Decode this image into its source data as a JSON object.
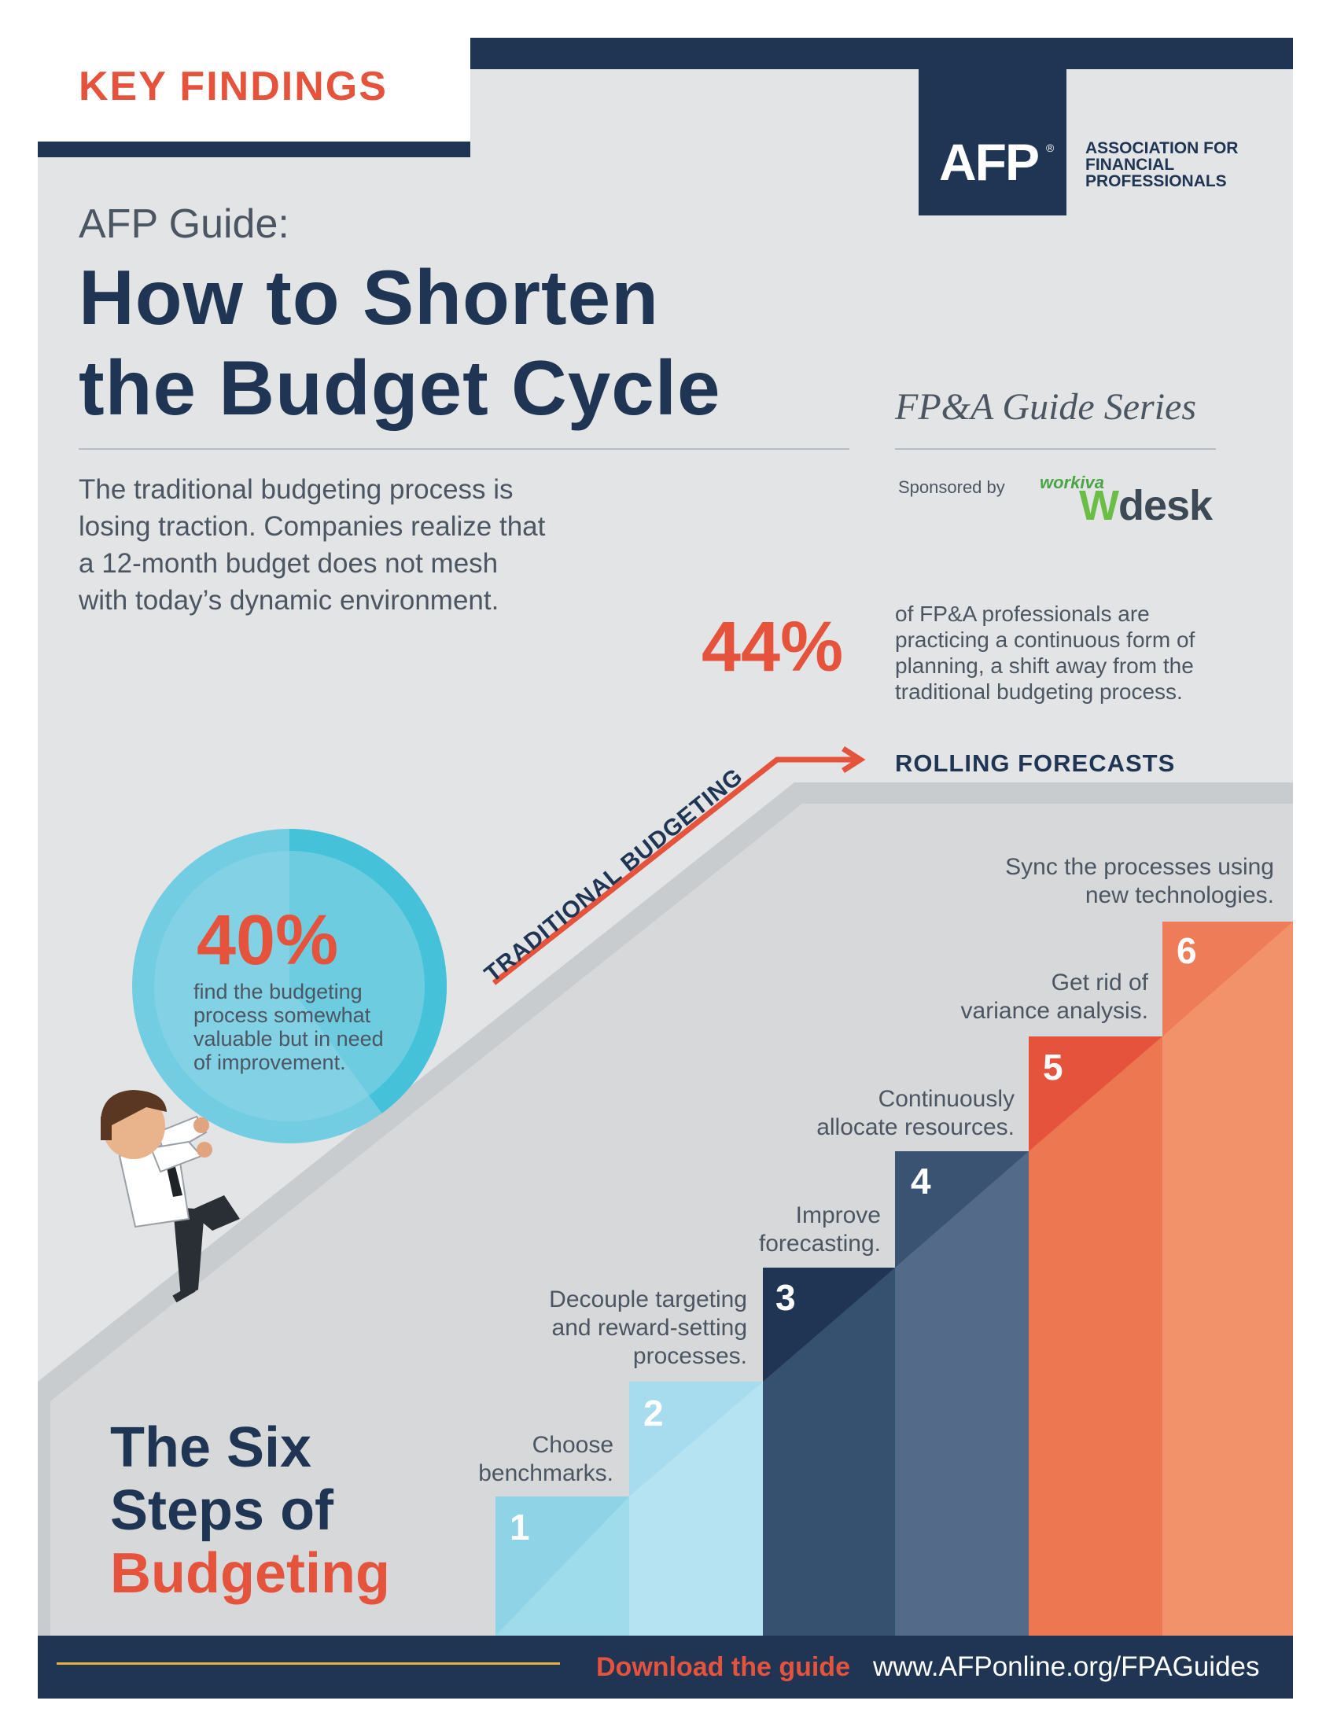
{
  "header": {
    "key_findings": "KEY FINDINGS",
    "logo_text": "AFP",
    "logo_mark": "®",
    "association": [
      "ASSOCIATION FOR",
      "FINANCIAL",
      "PROFESSIONALS"
    ]
  },
  "title": {
    "guide_label": "AFP Guide:",
    "line1": "How to Shorten",
    "line2": "the Budget Cycle",
    "series": "FP&A Guide Series",
    "sponsored_by": "Sponsored by",
    "sponsor_small": "workiva",
    "sponsor_w": "W",
    "sponsor_rest": "desk"
  },
  "intro": [
    "The traditional budgeting process is",
    "losing traction. Companies realize that",
    "a 12-month budget does not mesh",
    "with today’s dynamic environment."
  ],
  "stat44": {
    "value": "44%",
    "text": [
      "of FP&A professionals are",
      "practicing a continuous form of",
      "planning, a shift away from the",
      "traditional budgeting process."
    ]
  },
  "stat40": {
    "value": "40%",
    "fraction": 0.4,
    "text": [
      "find the budgeting",
      "process somewhat",
      "valuable but in need",
      "of improvement."
    ]
  },
  "path": {
    "traditional": "TRADITIONAL BUDGETING",
    "rolling": "ROLLING FORECASTS"
  },
  "six_steps": {
    "line1": "The Six",
    "line2": "Steps of",
    "line3": "Budgeting"
  },
  "steps": [
    {
      "num": "1",
      "lines": [
        "Choose",
        "benchmarks."
      ]
    },
    {
      "num": "2",
      "lines": [
        "Decouple targeting",
        "and reward-setting",
        "processes."
      ]
    },
    {
      "num": "3",
      "lines": [
        "Improve",
        "forecasting."
      ]
    },
    {
      "num": "4",
      "lines": [
        "Continuously",
        "allocate resources."
      ]
    },
    {
      "num": "5",
      "lines": [
        "Get rid of",
        "variance analysis."
      ]
    },
    {
      "num": "6",
      "lines": [
        "Sync the processes using",
        "new technologies."
      ]
    }
  ],
  "footer": {
    "download": "Download the guide",
    "url": "www.AFPonline.org/FPAGuides"
  },
  "colors": {
    "navy": "#1f3553",
    "orange": "#e5533c",
    "gray_bg": "#e2e4e5",
    "light_blue": "#8fd3e6",
    "gold": "#e5b040"
  }
}
